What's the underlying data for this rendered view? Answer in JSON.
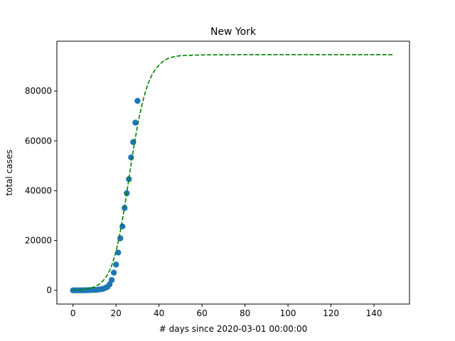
{
  "chart_data": {
    "type": "scatter",
    "title": "New York",
    "xlabel": "# days since 2020-03-01 00:00:00",
    "ylabel": "total cases",
    "xlim": [
      -7.5,
      156.5
    ],
    "ylim": [
      -5500,
      100000
    ],
    "xticks": [
      0,
      20,
      40,
      60,
      80,
      100,
      120,
      140
    ],
    "yticks": [
      0,
      20000,
      40000,
      60000,
      80000
    ],
    "grid": false,
    "legend": "none",
    "series": [
      {
        "kind": "scatter",
        "color": "#1f77b4",
        "x": [
          0,
          1,
          2,
          3,
          4,
          5,
          6,
          7,
          8,
          9,
          10,
          11,
          12,
          13,
          14,
          15,
          16,
          17,
          18,
          19,
          20,
          21,
          22,
          23,
          24,
          25,
          26,
          27,
          28,
          29,
          30
        ],
        "y": [
          0,
          1,
          1,
          2,
          11,
          22,
          33,
          76,
          105,
          142,
          173,
          216,
          325,
          421,
          613,
          961,
          1374,
          2382,
          4152,
          7102,
          10356,
          15168,
          20875,
          25665,
          33066,
          38987,
          44635,
          53363,
          59513,
          67325,
          76049
        ]
      },
      {
        "kind": "line",
        "style": "dashed",
        "color": "#008000",
        "x": [
          0,
          2,
          4,
          6,
          8,
          10,
          12,
          14,
          15,
          16,
          17,
          18,
          19,
          20,
          21,
          22,
          23,
          24,
          25,
          26,
          27,
          28,
          29,
          30,
          31,
          32,
          33,
          34,
          35,
          36,
          37,
          38,
          40,
          42,
          44,
          46,
          50,
          60,
          80,
          100,
          120,
          149
        ],
        "y": [
          100,
          170,
          290,
          490,
          830,
          1400,
          2300,
          3800,
          4900,
          6200,
          7900,
          10000,
          12600,
          15700,
          19400,
          23600,
          28400,
          33600,
          39100,
          44800,
          50500,
          56000,
          61200,
          66000,
          70300,
          74200,
          77600,
          80600,
          83100,
          85200,
          86900,
          88300,
          90500,
          92000,
          93000,
          93600,
          94200,
          94500,
          94600,
          94600,
          94600,
          94600
        ]
      }
    ]
  }
}
